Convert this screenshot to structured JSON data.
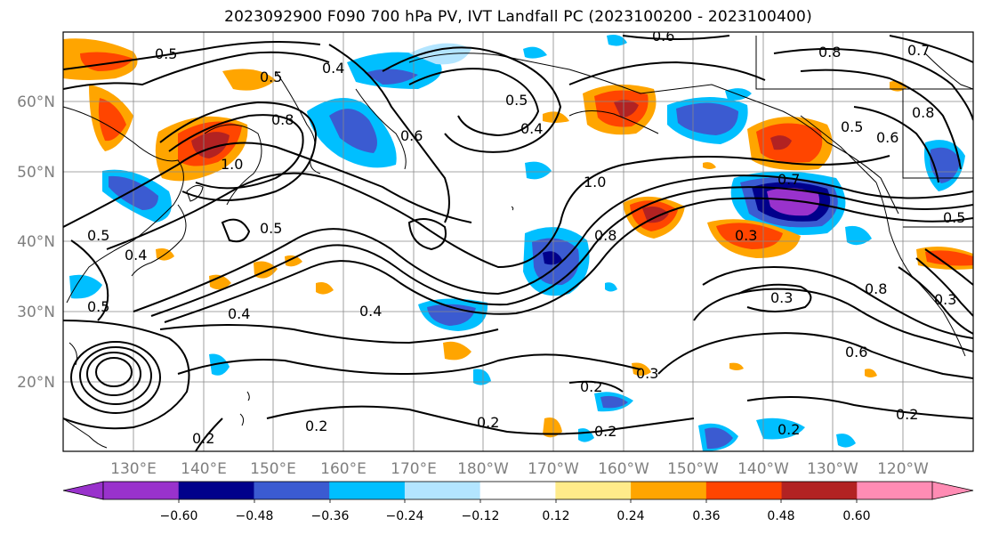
{
  "title": "2023092900 F090 700 hPa PV, IVT Landfall PC (2023100200 - 2023100400)",
  "lat_labels": [
    "60°N",
    "50°N",
    "40°N",
    "30°N",
    "20°N"
  ],
  "lon_labels": [
    "130°E",
    "140°E",
    "150°E",
    "160°E",
    "170°E",
    "180°W",
    "170°W",
    "160°W",
    "150°W",
    "140°W",
    "130°W",
    "120°W"
  ],
  "colorbar": {
    "colors": [
      "#9932cc",
      "#00008b",
      "#3b5bd1",
      "#00bfff",
      "#b3e5ff",
      "#ffffff",
      "#ffeb8a",
      "#ffa500",
      "#ff4500",
      "#b22222",
      "#ff8cb4"
    ],
    "tick_labels": [
      "−0.60",
      "−0.48",
      "−0.36",
      "−0.24",
      "−0.12",
      "0.12",
      "0.24",
      "0.36",
      "0.48",
      "0.60"
    ]
  },
  "contour_labels": [
    "0.5",
    "0.5",
    "0.4",
    "0.8",
    "1.0",
    "0.5",
    "0.4",
    "0.6",
    "0.6",
    "0.8",
    "0.7",
    "0.5",
    "0.6",
    "0.8",
    "1.0",
    "0.8",
    "0.7",
    "0.3",
    "0.3",
    "0.8",
    "0.5",
    "0.5",
    "0.4",
    "0.5",
    "0.4",
    "0.4",
    "0.3",
    "0.3",
    "0.2",
    "0.2",
    "0.2",
    "0.6",
    "0.2",
    "0.2",
    "0.2",
    "0.5",
    "0.2"
  ]
}
